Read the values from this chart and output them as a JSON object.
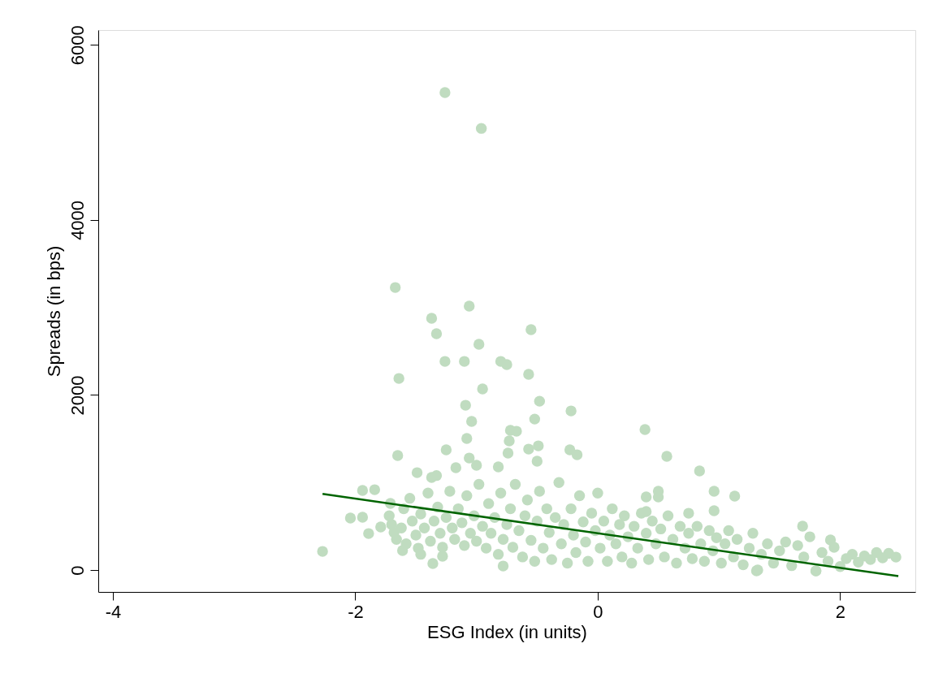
{
  "chart_data": {
    "type": "scatter",
    "xlabel": "ESG Index (in units)",
    "ylabel": "Spreads (in bps)",
    "xlim": [
      -4.12,
      2.62
    ],
    "ylim": [
      -250,
      6170
    ],
    "xticks": [
      -4,
      -2,
      0,
      2
    ],
    "yticks": [
      0,
      2000,
      4000,
      6000
    ],
    "grid": false,
    "marker": "circle",
    "series": [
      {
        "color": "#c0dcc0",
        "x": [
          -1.26,
          -0.96,
          -1.67,
          -1.37,
          -1.33,
          -1.06,
          -0.98,
          -1.26,
          -1.1,
          -0.8,
          -0.75,
          -0.55,
          -0.57,
          -1.64,
          -0.95,
          -0.48,
          -1.09,
          -0.22,
          0.39,
          -1.04,
          -1.08,
          -0.52,
          -0.72,
          -0.67,
          -0.73,
          -0.74,
          -0.57,
          -0.49,
          -0.5,
          -1.65,
          -1.25,
          -0.23,
          -0.17,
          0.84,
          0.57,
          0.96,
          1.13,
          0.96,
          0.75,
          0.5,
          0.5,
          0.4,
          0.4,
          1.92,
          1.69,
          -2.27,
          -2.04,
          -1.94,
          -1.94,
          -1.84,
          -1.89,
          -1.79,
          -1.71,
          -1.49,
          -1.37,
          -1.33,
          -1.17,
          -1.06,
          -1.0,
          -0.82,
          -1.36,
          -1.28,
          -1.61,
          -1.46,
          -0.78,
          1.31,
          1.8,
          -1.72,
          -1.7,
          -1.68,
          -1.66,
          -1.62,
          -1.6,
          -1.58,
          -1.55,
          -1.53,
          -1.5,
          -1.48,
          -1.46,
          -1.43,
          -1.4,
          -1.38,
          -1.35,
          -1.32,
          -1.3,
          -1.28,
          -1.25,
          -1.22,
          -1.2,
          -1.18,
          -1.15,
          -1.12,
          -1.1,
          -1.08,
          -1.05,
          -1.02,
          -1.0,
          -0.98,
          -0.95,
          -0.92,
          -0.9,
          -0.88,
          -0.85,
          -0.82,
          -0.8,
          -0.78,
          -0.75,
          -0.72,
          -0.7,
          -0.68,
          -0.65,
          -0.62,
          -0.6,
          -0.58,
          -0.55,
          -0.52,
          -0.5,
          -0.48,
          -0.45,
          -0.42,
          -0.4,
          -0.38,
          -0.35,
          -0.32,
          -0.3,
          -0.28,
          -0.25,
          -0.22,
          -0.2,
          -0.18,
          -0.15,
          -0.12,
          -0.1,
          -0.08,
          -0.05,
          -0.02,
          0.0,
          0.02,
          0.05,
          0.08,
          0.1,
          0.12,
          0.15,
          0.18,
          0.2,
          0.22,
          0.25,
          0.28,
          0.3,
          0.33,
          0.36,
          0.4,
          0.42,
          0.45,
          0.48,
          0.52,
          0.55,
          0.58,
          0.62,
          0.65,
          0.68,
          0.72,
          0.75,
          0.78,
          0.82,
          0.85,
          0.88,
          0.92,
          0.95,
          0.98,
          1.02,
          1.05,
          1.08,
          1.12,
          1.15,
          1.2,
          1.25,
          1.28,
          1.32,
          1.35,
          1.4,
          1.45,
          1.5,
          1.55,
          1.6,
          1.65,
          1.7,
          1.75,
          1.8,
          1.85,
          1.9,
          1.95,
          2.0,
          2.05,
          2.1,
          2.15,
          2.2,
          2.25,
          2.3,
          2.35,
          2.4,
          2.46
        ],
        "values": [
          5455,
          5046,
          3228,
          2876,
          2700,
          3015,
          2579,
          2384,
          2384,
          2384,
          2347,
          2746,
          2236,
          2189,
          2069,
          1929,
          1883,
          1818,
          1605,
          1698,
          1503,
          1725,
          1596,
          1586,
          1475,
          1336,
          1382,
          1419,
          1243,
          1308,
          1373,
          1373,
          1317,
          1132,
          1299,
          900,
          844,
          677,
          649,
          835,
          900,
          835,
          668,
          343,
          501,
          213,
          594,
          603,
          909,
          918,
          417,
          492,
          761,
          1113,
          1058,
          1080,
          1169,
          1280,
          1197,
          1178,
          74,
          158,
          223,
          180,
          46,
          -9,
          -9,
          620,
          520,
          430,
          350,
          480,
          700,
          300,
          820,
          560,
          400,
          250,
          640,
          480,
          880,
          330,
          560,
          720,
          420,
          260,
          600,
          900,
          480,
          350,
          700,
          540,
          280,
          850,
          420,
          620,
          330,
          980,
          500,
          250,
          760,
          420,
          600,
          180,
          880,
          350,
          520,
          700,
          260,
          980,
          450,
          150,
          620,
          800,
          340,
          100,
          560,
          900,
          250,
          700,
          430,
          120,
          600,
          1000,
          300,
          520,
          80,
          700,
          400,
          200,
          850,
          550,
          320,
          100,
          650,
          450,
          880,
          250,
          560,
          100,
          400,
          700,
          300,
          520,
          150,
          620,
          380,
          80,
          500,
          250,
          650,
          420,
          120,
          560,
          300,
          470,
          150,
          620,
          350,
          80,
          500,
          250,
          420,
          130,
          500,
          300,
          100,
          450,
          220,
          370,
          80,
          300,
          450,
          150,
          350,
          60,
          250,
          420,
          0,
          180,
          300,
          80,
          220,
          320,
          50,
          280,
          150,
          380,
          -10,
          200,
          100,
          260,
          40,
          130,
          180,
          90,
          160,
          120,
          200,
          140,
          190,
          148
        ]
      },
      {
        "type": "line",
        "color": "#006400",
        "line_style": "solid",
        "marker": "none",
        "x": [
          -2.27,
          2.48
        ],
        "values": [
          870,
          -70
        ]
      }
    ]
  }
}
